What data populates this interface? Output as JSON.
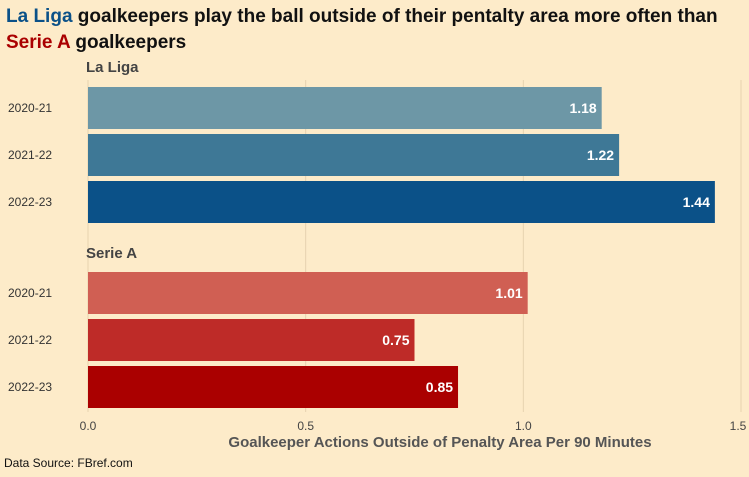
{
  "title": {
    "part1": "La Liga",
    "part2": " goalkeepers play the ball outside of their pentalty area more often than ",
    "part3": "Serie A",
    "part4": " goalkeepers"
  },
  "source": "Data Source: FBref.com",
  "chart_data": {
    "type": "bar",
    "orientation": "horizontal",
    "xlabel": "Goalkeeper Actions Outside of Penalty Area Per 90 Minutes",
    "xlim": [
      0,
      1.5
    ],
    "xticks": [
      "0.0",
      "0.5",
      "1.0",
      "1.5"
    ],
    "grid": true,
    "panels": [
      {
        "name": "La Liga",
        "categories": [
          "2020-21",
          "2021-22",
          "2022-23"
        ],
        "values": [
          1.18,
          1.22,
          1.44
        ],
        "labels": [
          "1.18",
          "1.22",
          "1.44"
        ],
        "colors": [
          "#6d97a6",
          "#3e7896",
          "#0b5188"
        ]
      },
      {
        "name": "Serie A",
        "categories": [
          "2020-21",
          "2021-22",
          "2022-23"
        ],
        "values": [
          1.01,
          0.75,
          0.85
        ],
        "labels": [
          "1.01",
          "0.75",
          "0.85"
        ],
        "colors": [
          "#d05f53",
          "#be2b28",
          "#aa0000"
        ]
      }
    ]
  }
}
